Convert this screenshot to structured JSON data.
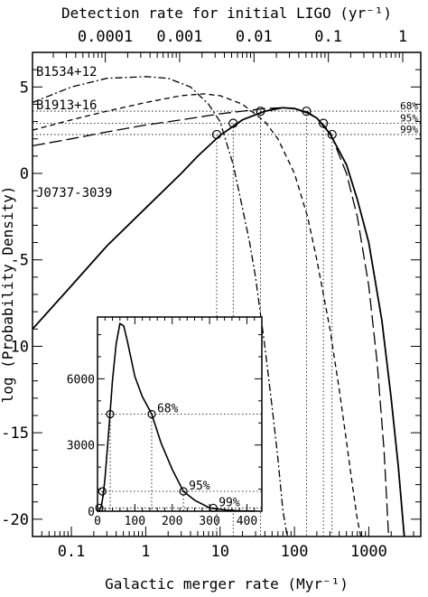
{
  "chart_data": {
    "type": "line",
    "top_axis": {
      "label": "Detection rate for initial LIGO (yr⁻¹)",
      "ticks": [
        {
          "value": 0.0001,
          "label": "0.0001"
        },
        {
          "value": 0.001,
          "label": "0.001"
        },
        {
          "value": 0.01,
          "label": "0.01"
        },
        {
          "value": 0.1,
          "label": "0.1"
        },
        {
          "value": 1,
          "label": "1"
        }
      ]
    },
    "bottom_axis": {
      "label": "Galactic merger rate (Myr⁻¹)",
      "scale": "log",
      "range": [
        0.03,
        5000
      ],
      "ticks": [
        {
          "value": 0.1,
          "label": "0.1"
        },
        {
          "value": 1,
          "label": "1"
        },
        {
          "value": 10,
          "label": "10"
        },
        {
          "value": 100,
          "label": "100"
        },
        {
          "value": 1000,
          "label": "1000"
        }
      ]
    },
    "left_axis": {
      "label": "log (Probability Density)",
      "range": [
        -21,
        7
      ],
      "ticks": [
        {
          "value": 5,
          "label": "5"
        },
        {
          "value": 0,
          "label": "0"
        },
        {
          "value": -5,
          "label": "-5"
        },
        {
          "value": -10,
          "label": "-10"
        },
        {
          "value": -15,
          "label": "-15"
        },
        {
          "value": -20,
          "label": "-20"
        }
      ]
    },
    "series": [
      {
        "name": "B1534+12",
        "style": "dashdot",
        "x": [
          0.03,
          0.1,
          0.3,
          1,
          2,
          4,
          7,
          10,
          15,
          20,
          25,
          30,
          40,
          50,
          60,
          70,
          80
        ],
        "y": [
          4.1,
          5.0,
          5.5,
          5.6,
          5.5,
          5.0,
          4.0,
          3.0,
          0.5,
          -2.0,
          -4.0,
          -6.0,
          -10.0,
          -13.5,
          -16.5,
          -19.5,
          -21
        ]
      },
      {
        "name": "B1913+16",
        "style": "shortdash",
        "x": [
          0.03,
          0.1,
          0.3,
          1,
          3,
          6,
          10,
          20,
          40,
          60,
          100,
          150,
          200,
          300,
          400,
          500,
          600,
          700,
          780
        ],
        "y": [
          2.5,
          3.1,
          3.6,
          4.1,
          4.5,
          4.6,
          4.5,
          4.0,
          3.0,
          2.0,
          0.0,
          -2.5,
          -5.0,
          -9.0,
          -12.5,
          -15.5,
          -18.0,
          -20.0,
          -21
        ]
      },
      {
        "name": "",
        "style": "longdash",
        "x": [
          0.03,
          0.1,
          0.3,
          1,
          3,
          10,
          20,
          40,
          70,
          100,
          150,
          200,
          300,
          500,
          700,
          1000,
          1300,
          1600,
          1850
        ],
        "y": [
          1.6,
          2.0,
          2.4,
          2.8,
          3.1,
          3.45,
          3.6,
          3.75,
          3.8,
          3.75,
          3.55,
          3.2,
          2.4,
          0.0,
          -2.5,
          -6.5,
          -11.0,
          -16.0,
          -21
        ]
      },
      {
        "name": "J0737-3039",
        "style": "solid",
        "x": [
          0.03,
          0.1,
          0.3,
          1,
          3,
          5,
          10,
          20,
          40,
          70,
          100,
          150,
          200,
          300,
          500,
          700,
          1000,
          1500,
          2000,
          2500,
          3000
        ],
        "y": [
          -9.0,
          -6.5,
          -4.2,
          -2.0,
          0.0,
          1.0,
          2.2,
          3.1,
          3.6,
          3.8,
          3.75,
          3.5,
          3.2,
          2.3,
          0.5,
          -1.5,
          -4.0,
          -8.5,
          -13.0,
          -17.0,
          -21
        ]
      }
    ],
    "confidence_levels": [
      {
        "label": "68%",
        "y": 3.6,
        "x_low": 35,
        "x_high": 145
      },
      {
        "label": "95%",
        "y": 2.9,
        "x_low": 15,
        "x_high": 245
      },
      {
        "label": "99%",
        "y": 2.25,
        "x_low": 9,
        "x_high": 320
      }
    ],
    "inset": {
      "type": "line",
      "xlim": [
        0,
        440
      ],
      "ylim": [
        0,
        8800
      ],
      "x_ticks": [
        {
          "value": 0,
          "label": "0"
        },
        {
          "value": 100,
          "label": "100"
        },
        {
          "value": 200,
          "label": "200"
        },
        {
          "value": 300,
          "label": "300"
        },
        {
          "value": 400,
          "label": "400"
        }
      ],
      "y_ticks": [
        {
          "value": 0,
          "label": "0"
        },
        {
          "value": 3000,
          "label": "3000"
        },
        {
          "value": 6000,
          "label": "6000"
        }
      ],
      "x": [
        0,
        5,
        10,
        15,
        20,
        30,
        40,
        50,
        60,
        70,
        80,
        100,
        120,
        145,
        170,
        200,
        230,
        260,
        300,
        340,
        380,
        420
      ],
      "y": [
        0,
        40,
        220,
        700,
        1500,
        3600,
        5900,
        7600,
        8500,
        8400,
        7700,
        6100,
        5200,
        4400,
        3100,
        1900,
        900,
        500,
        150,
        60,
        20,
        10
      ],
      "confidence_levels": [
        {
          "label": "68%",
          "y": 4400,
          "x_low": 34,
          "x_high": 145
        },
        {
          "label": "95%",
          "y": 900,
          "x_low": 13,
          "x_high": 230
        },
        {
          "label": "99%",
          "y": 150,
          "x_low": 5,
          "x_high": 310
        }
      ]
    }
  }
}
